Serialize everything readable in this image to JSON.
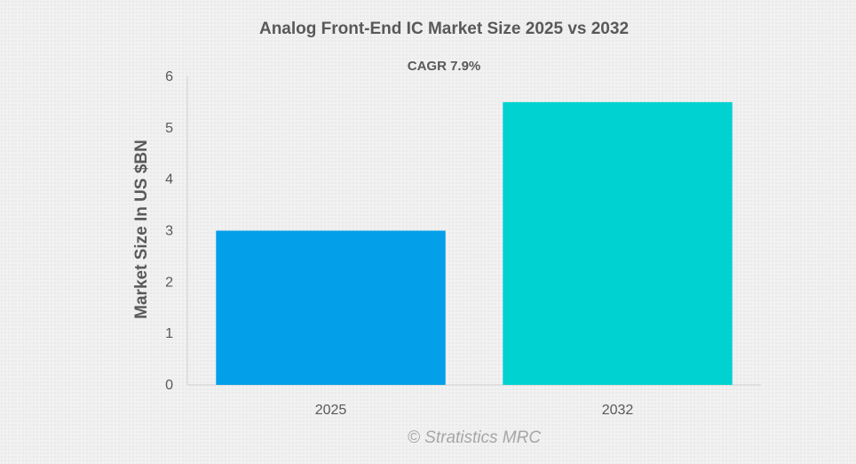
{
  "chart_data": {
    "type": "bar",
    "title": "Analog Front-End IC Market Size 2025 vs 2032",
    "subtitle": "CAGR 7.9%",
    "xlabel": "",
    "ylabel": "Market Size In US $BN",
    "categories": [
      "2025",
      "2032"
    ],
    "values": [
      3.0,
      5.5
    ],
    "colors": [
      "#039fe9",
      "#00d2d2"
    ],
    "ylim": [
      0,
      6
    ],
    "yticks": [
      "0",
      "1",
      "2",
      "3",
      "4",
      "5",
      "6"
    ],
    "grid": false,
    "legend": "none"
  },
  "watermark": "© Stratistics MRC"
}
